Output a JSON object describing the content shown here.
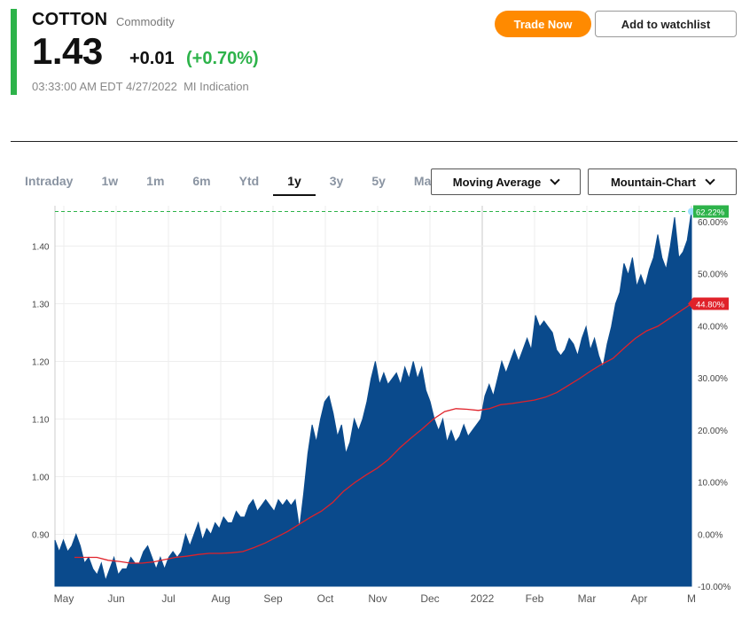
{
  "quote": {
    "symbol": "COTTON",
    "type": "Commodity",
    "price": "1.43",
    "change": "+0.01",
    "change_pct": "(+0.70%)",
    "timestamp": "03:33:00 AM EDT 4/27/2022",
    "indication": "MI Indication"
  },
  "buttons": {
    "trade": "Trade Now",
    "watchlist": "Add to watchlist"
  },
  "tabs": [
    {
      "label": "Intraday",
      "active": false
    },
    {
      "label": "1w",
      "active": false
    },
    {
      "label": "1m",
      "active": false
    },
    {
      "label": "6m",
      "active": false
    },
    {
      "label": "Ytd",
      "active": false
    },
    {
      "label": "1y",
      "active": true
    },
    {
      "label": "3y",
      "active": false
    },
    {
      "label": "5y",
      "active": false
    },
    {
      "label": "Max",
      "active": false
    }
  ],
  "dropdowns": {
    "indicator": "Moving Average",
    "chart_type": "Mountain-Chart"
  },
  "colors": {
    "accent": "#2db34a",
    "trade": "#ff8a00",
    "area": "#0a4a8c",
    "ma": "#e0222a",
    "badge_pos": "#2db34a",
    "badge_ma": "#e0222a"
  },
  "chart_data": {
    "type": "area",
    "x_ticks": [
      "May",
      "Jun",
      "Jul",
      "Aug",
      "Sep",
      "Oct",
      "Nov",
      "Dec",
      "2022",
      "Feb",
      "Mar",
      "Apr",
      "M"
    ],
    "y_ticks_left": [
      "0.90",
      "1.00",
      "1.10",
      "1.20",
      "1.30",
      "1.40"
    ],
    "y_ticks_right": [
      "-10.00%",
      "0.00%",
      "10.00%",
      "20.00%",
      "30.00%",
      "40.00%",
      "50.00%",
      "60.00%"
    ],
    "ylim": [
      0.81,
      1.47
    ],
    "last_badge": "62.22%",
    "ma_badge": "44.80%",
    "series": [
      {
        "name": "price",
        "values": [
          0.89,
          0.87,
          0.89,
          0.87,
          0.88,
          0.9,
          0.88,
          0.85,
          0.86,
          0.84,
          0.83,
          0.85,
          0.82,
          0.84,
          0.86,
          0.83,
          0.84,
          0.84,
          0.86,
          0.85,
          0.85,
          0.87,
          0.88,
          0.86,
          0.84,
          0.86,
          0.84,
          0.86,
          0.87,
          0.86,
          0.87,
          0.9,
          0.88,
          0.9,
          0.92,
          0.89,
          0.91,
          0.9,
          0.92,
          0.91,
          0.93,
          0.92,
          0.92,
          0.94,
          0.93,
          0.93,
          0.95,
          0.96,
          0.94,
          0.95,
          0.96,
          0.95,
          0.94,
          0.96,
          0.95,
          0.96,
          0.95,
          0.96,
          0.91,
          0.97,
          1.04,
          1.09,
          1.06,
          1.1,
          1.13,
          1.14,
          1.11,
          1.07,
          1.09,
          1.04,
          1.06,
          1.1,
          1.08,
          1.1,
          1.13,
          1.17,
          1.2,
          1.16,
          1.18,
          1.16,
          1.17,
          1.18,
          1.16,
          1.19,
          1.17,
          1.2,
          1.17,
          1.19,
          1.15,
          1.13,
          1.1,
          1.08,
          1.1,
          1.06,
          1.08,
          1.06,
          1.07,
          1.09,
          1.07,
          1.08,
          1.09,
          1.1,
          1.14,
          1.16,
          1.14,
          1.17,
          1.2,
          1.18,
          1.2,
          1.22,
          1.2,
          1.22,
          1.24,
          1.22,
          1.28,
          1.26,
          1.27,
          1.26,
          1.25,
          1.22,
          1.21,
          1.22,
          1.24,
          1.23,
          1.21,
          1.24,
          1.26,
          1.22,
          1.24,
          1.21,
          1.19,
          1.23,
          1.26,
          1.3,
          1.32,
          1.37,
          1.35,
          1.38,
          1.33,
          1.35,
          1.33,
          1.36,
          1.38,
          1.42,
          1.38,
          1.36,
          1.4,
          1.45,
          1.38,
          1.39,
          1.41,
          1.46
        ]
      },
      {
        "name": "Moving Average",
        "values": [
          0.86,
          0.86,
          0.86,
          0.855,
          0.853,
          0.85,
          0.85,
          0.852,
          0.856,
          0.86,
          0.862,
          0.865,
          0.867,
          0.867,
          0.868,
          0.87,
          0.877,
          0.885,
          0.895,
          0.905,
          0.917,
          0.929,
          0.94,
          0.955,
          0.975,
          0.99,
          1.003,
          1.015,
          1.03,
          1.05,
          1.067,
          1.083,
          1.1,
          1.113,
          1.118,
          1.117,
          1.115,
          1.118,
          1.125,
          1.127,
          1.13,
          1.133,
          1.138,
          1.146,
          1.158,
          1.17,
          1.183,
          1.195,
          1.205,
          1.223,
          1.24,
          1.253,
          1.261,
          1.274,
          1.287,
          1.3
        ]
      }
    ]
  }
}
